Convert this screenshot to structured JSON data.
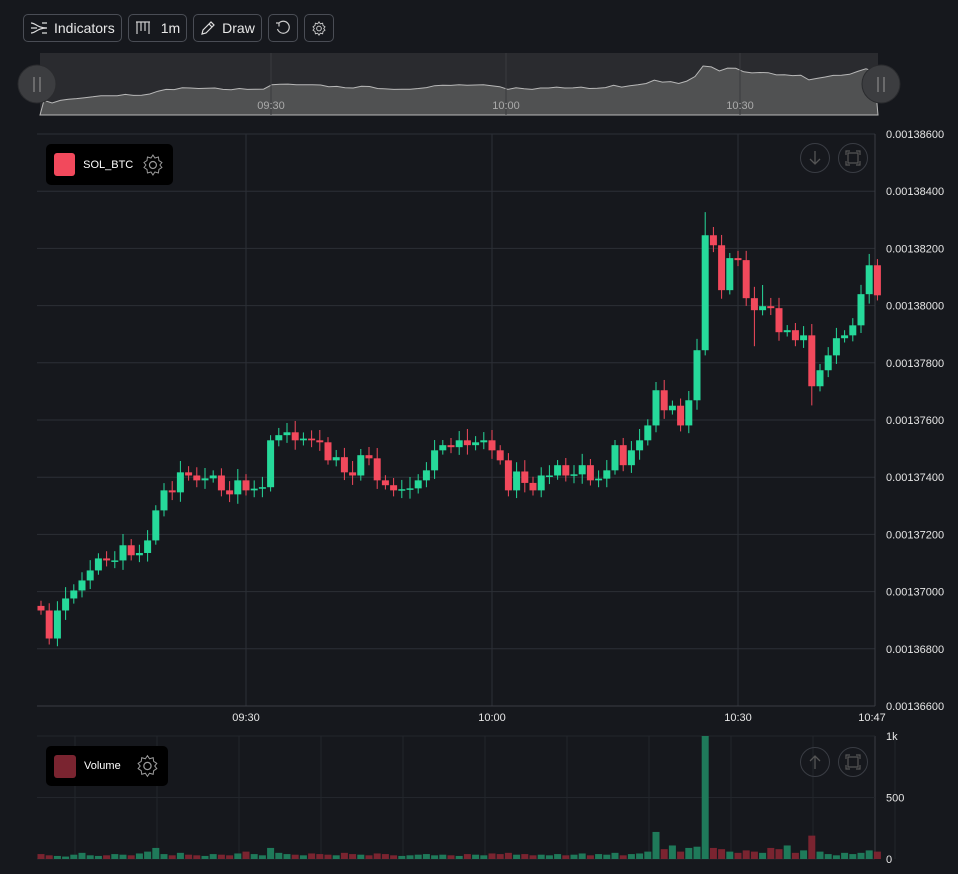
{
  "toolbar": {
    "indicators_label": "Indicators",
    "interval_label": "1m",
    "draw_label": "Draw",
    "icons": [
      "indicators-icon",
      "interval-bars-icon",
      "pencil-icon",
      "reset-icon",
      "gear-icon"
    ]
  },
  "navigator": {
    "labels": [
      "09:30",
      "10:00",
      "10:30"
    ]
  },
  "price_pane": {
    "legend_label": "SOL_BTC",
    "legend_color": "#f2495c"
  },
  "volume_pane": {
    "legend_label": "Volume",
    "legend_color": "#7a2430"
  },
  "colors": {
    "up": "#26d99a",
    "down": "#f2495c",
    "background": "#16181d",
    "grid": "#2c2f36"
  },
  "chart_data": {
    "type": "candlestick",
    "interval": "1m",
    "start_time": "09:05",
    "end_time": "10:47",
    "price_axis": {
      "ylim": [
        0.001366,
        0.001386
      ],
      "ticks": [
        "0.00136600",
        "0.00136800",
        "0.00137000",
        "0.00137200",
        "0.00137400",
        "0.00137600",
        "0.00137800",
        "0.00138000",
        "0.00138200",
        "0.00138400",
        "0.00138600"
      ]
    },
    "time_axis": {
      "ticks": [
        "09:30",
        "10:00",
        "10:30",
        "10:47"
      ]
    },
    "volume_axis": {
      "ylim": [
        0,
        1000
      ],
      "ticks": [
        "0",
        "500",
        "1k"
      ]
    },
    "closes": [
      0.00136934,
      0.00136836,
      0.00136934,
      0.00136976,
      0.00137004,
      0.00137039,
      0.00137074,
      0.00137116,
      0.00137109,
      0.00137109,
      0.00137162,
      0.00137127,
      0.00137135,
      0.00137179,
      0.00137284,
      0.00137354,
      0.00137347,
      0.00137417,
      0.00137406,
      0.00137389,
      0.00137396,
      0.00137406,
      0.00137354,
      0.0013734,
      0.00137389,
      0.00137354,
      0.0013736,
      0.00137365,
      0.00137529,
      0.00137547,
      0.00137557,
      0.00137529,
      0.00137535,
      0.00137529,
      0.00137522,
      0.00137459,
      0.0013747,
      0.00137417,
      0.00137406,
      0.00137477,
      0.00137466,
      0.00137389,
      0.00137372,
      0.00137354,
      0.00137358,
      0.00137361,
      0.00137389,
      0.00137424,
      0.00137494,
      0.00137512,
      0.00137505,
      0.00137529,
      0.00137512,
      0.00137522,
      0.00137529,
      0.00137494,
      0.00137459,
      0.00137354,
      0.0013742,
      0.0013738,
      0.00137354,
      0.00137406,
      0.00137406,
      0.00137442,
      0.00137406,
      0.0013741,
      0.00137442,
      0.00137389,
      0.00137395,
      0.00137424,
      0.00137512,
      0.00137442,
      0.00137494,
      0.00137529,
      0.00137581,
      0.00137704,
      0.00137634,
      0.0013765,
      0.00137581,
      0.00137669,
      0.00137844,
      0.00138246,
      0.00138211,
      0.00138054,
      0.00138166,
      0.00138159,
      0.00138026,
      0.00137984,
      0.00137998,
      0.00137991,
      0.00137907,
      0.00137914,
      0.00137879,
      0.00137896,
      0.00137718,
      0.00137774,
      0.00137826,
      0.00137886,
      0.00137896,
      0.00137931,
      0.0013804,
      0.00138141,
      0.00138036
    ],
    "first_open": 0.0013695,
    "volumes": [
      40,
      30,
      25,
      20,
      35,
      50,
      30,
      25,
      30,
      40,
      35,
      30,
      45,
      60,
      90,
      40,
      30,
      50,
      35,
      30,
      25,
      40,
      35,
      30,
      45,
      60,
      40,
      30,
      90,
      50,
      40,
      35,
      30,
      45,
      40,
      35,
      30,
      50,
      40,
      35,
      30,
      45,
      40,
      30,
      25,
      30,
      35,
      40,
      30,
      35,
      30,
      25,
      40,
      35,
      30,
      45,
      40,
      50,
      35,
      40,
      30,
      35,
      30,
      40,
      30,
      35,
      45,
      30,
      40,
      35,
      50,
      30,
      40,
      45,
      60,
      220,
      80,
      110,
      60,
      90,
      100,
      1000,
      90,
      80,
      60,
      50,
      70,
      60,
      50,
      90,
      80,
      110,
      50,
      70,
      190,
      60,
      40,
      30,
      50,
      40,
      50,
      70,
      60
    ]
  }
}
